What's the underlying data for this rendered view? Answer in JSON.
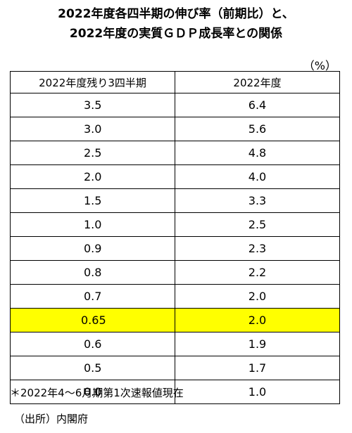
{
  "title": {
    "line1": "2022年度各四半期の伸び率（前期比）と、",
    "line2": "2022年度の実質ＧＤＰ成長率との関係"
  },
  "unit": "（%）",
  "table": {
    "headers": [
      "2022年度残り3四半期",
      "2022年度"
    ],
    "rows": [
      [
        "3.5",
        "6.4"
      ],
      [
        "3.0",
        "5.6"
      ],
      [
        "2.5",
        "4.8"
      ],
      [
        "2.0",
        "4.0"
      ],
      [
        "1.5",
        "3.3"
      ],
      [
        "1.0",
        "2.5"
      ],
      [
        "0.9",
        "2.3"
      ],
      [
        "0.8",
        "2.2"
      ],
      [
        "0.7",
        "2.0"
      ],
      [
        "0.65",
        "2.0"
      ],
      [
        "0.6",
        "1.9"
      ],
      [
        "0.5",
        "1.7"
      ],
      [
        "0.0",
        "1.0"
      ]
    ],
    "highlight_row_index": 9,
    "highlight_color": "#ffff00"
  },
  "note": "＊2022年4～6月期第1次速報値現在",
  "source": "（出所）内閣府"
}
